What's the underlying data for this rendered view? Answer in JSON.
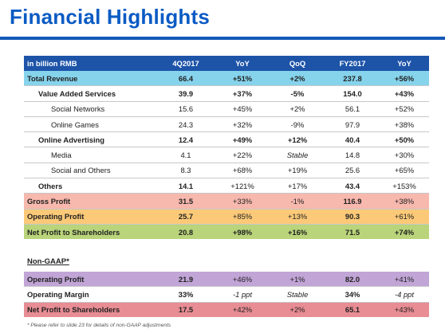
{
  "title": "Financial Highlights",
  "header": [
    "in billion RMB",
    "4Q2017",
    "YoY",
    "QoQ",
    "FY2017",
    "YoY"
  ],
  "rows": [
    {
      "label": "Total Revenue",
      "v": [
        "66.4",
        "+51%",
        "+2%",
        "237.8",
        "+56%"
      ]
    },
    {
      "label": "Value Added Services",
      "v": [
        "39.9",
        "+37%",
        "-5%",
        "154.0",
        "+43%"
      ]
    },
    {
      "label": "Social Networks",
      "v": [
        "15.6",
        "+45%",
        "+2%",
        "56.1",
        "+52%"
      ]
    },
    {
      "label": "Online Games",
      "v": [
        "24.3",
        "+32%",
        "-9%",
        "97.9",
        "+38%"
      ]
    },
    {
      "label": "Online Advertising",
      "v": [
        "12.4",
        "+49%",
        "+12%",
        "40.4",
        "+50%"
      ]
    },
    {
      "label": "Media",
      "v": [
        "4.1",
        "+22%",
        "Stable",
        "14.8",
        "+30%"
      ]
    },
    {
      "label": "Social and Others",
      "v": [
        "8.3",
        "+68%",
        "+19%",
        "25.6",
        "+65%"
      ]
    },
    {
      "label": "Others",
      "v": [
        "14.1",
        "+121%",
        "+17%",
        "43.4",
        "+153%"
      ]
    },
    {
      "label": "Gross Profit",
      "v": [
        "31.5",
        "+33%",
        "-1%",
        "116.9",
        "+38%"
      ]
    },
    {
      "label": "Operating Profit",
      "v": [
        "25.7",
        "+85%",
        "+13%",
        "90.3",
        "+61%"
      ]
    },
    {
      "label": "Net Profit to Shareholders",
      "v": [
        "20.8",
        "+98%",
        "+16%",
        "71.5",
        "+74%"
      ]
    }
  ],
  "nongaap_label": "Non-GAAP*",
  "nongaap_rows": [
    {
      "label": "Operating Profit",
      "v": [
        "21.9",
        "+46%",
        "+1%",
        "82.0",
        "+41%"
      ]
    },
    {
      "label": "Operating Margin",
      "v": [
        "33%",
        "-1 ppt",
        "Stable",
        "34%",
        "-4 ppt"
      ]
    },
    {
      "label": "Net Profit to Shareholders",
      "v": [
        "17.5",
        "+42%",
        "+2%",
        "65.1",
        "+43%"
      ]
    }
  ],
  "footnote": "* Please refer to slide 23 for details of non-GAAP adjustments",
  "colors": {
    "title": "#0a5bc4",
    "header": "#1d54a8",
    "total_revenue": "#86d3ec",
    "gross_profit": "#f7b8ad",
    "operating_profit": "#fbc978",
    "net_profit": "#b9d47a",
    "nongaap_operating_profit": "#c1a5d6",
    "nongaap_net_profit": "#e88d94"
  }
}
